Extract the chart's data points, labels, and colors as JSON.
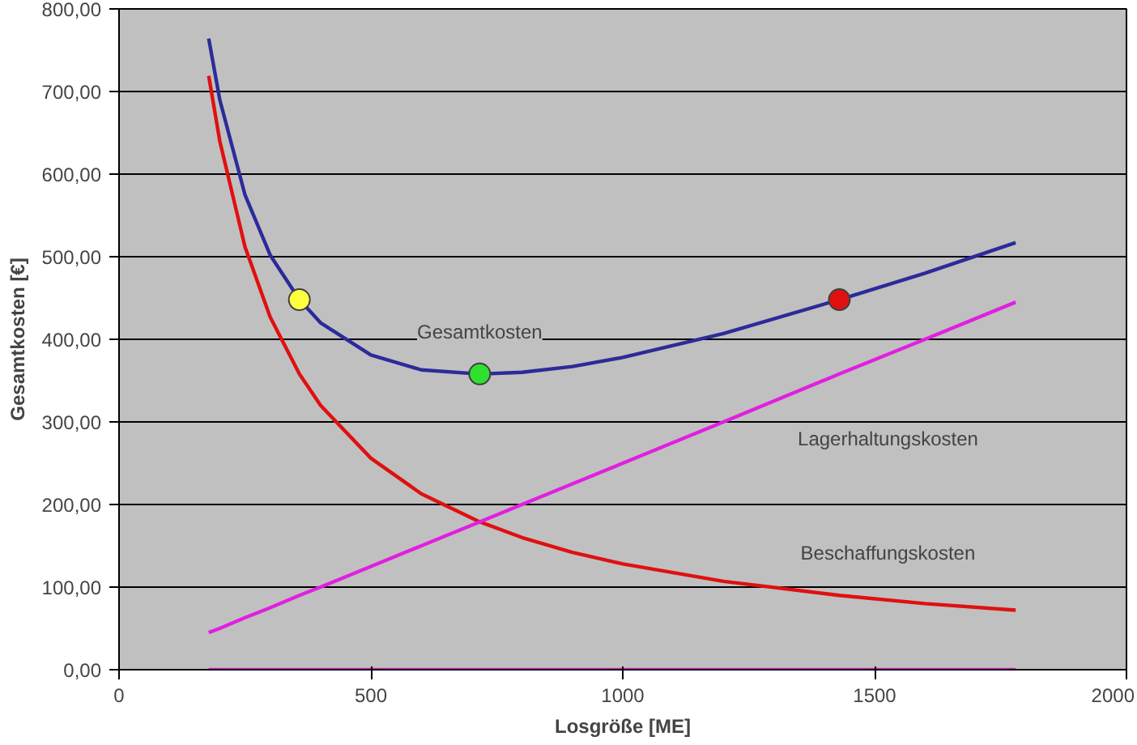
{
  "chart_data": {
    "type": "line",
    "xlabel": "Losgröße [ME]",
    "ylabel": "Gesamtkosten [€]",
    "x": [
      178,
      200,
      250,
      300,
      358,
      400,
      500,
      600,
      716,
      800,
      900,
      1000,
      1200,
      1430,
      1600,
      1780
    ],
    "series": [
      {
        "name": "Gesamtkosten",
        "color": "#2b2b9a",
        "values": [
          764,
          690,
          575,
          502,
          448,
          420,
          381,
          363,
          358,
          360,
          367,
          378,
          407,
          448,
          480,
          517
        ]
      },
      {
        "name": "Beschaffungskosten",
        "color": "#e01010",
        "values": [
          719,
          640,
          512,
          427,
          358,
          320,
          256,
          213,
          179,
          160,
          142,
          128,
          107,
          90,
          80,
          72
        ]
      },
      {
        "name": "Lagerhaltungskosten",
        "color": "#e020e0",
        "values": [
          45,
          50,
          63,
          75,
          90,
          100,
          125,
          150,
          179,
          200,
          225,
          250,
          300,
          358,
          400,
          445
        ]
      },
      {
        "color": "#e020e0",
        "values": [
          0,
          0,
          0,
          0,
          0,
          0,
          0,
          0,
          0,
          0,
          0,
          0,
          0,
          0,
          0,
          0
        ]
      },
      {
        "type": "scatter",
        "x": [
          358,
          716,
          1430
        ],
        "values": [
          448,
          358,
          448
        ],
        "colors": [
          "#ffff40",
          "#30e030",
          "#e01010"
        ]
      }
    ],
    "xlim": [
      0,
      2000
    ],
    "ylim": [
      0,
      800
    ],
    "xticks": [
      0,
      500,
      1000,
      1500,
      2000
    ],
    "yticks": [
      {
        "value": 0,
        "label": "0,00"
      },
      {
        "value": 100,
        "label": "100,00"
      },
      {
        "value": 200,
        "label": "200,00"
      },
      {
        "value": 300,
        "label": "300,00"
      },
      {
        "value": 400,
        "label": "400,00"
      },
      {
        "value": 500,
        "label": "500,00"
      },
      {
        "value": 600,
        "label": "600,00"
      },
      {
        "value": 700,
        "label": "700,00"
      },
      {
        "value": 800,
        "label": "800,00"
      }
    ],
    "grid": "y",
    "legend": false,
    "line_style": "solid"
  }
}
